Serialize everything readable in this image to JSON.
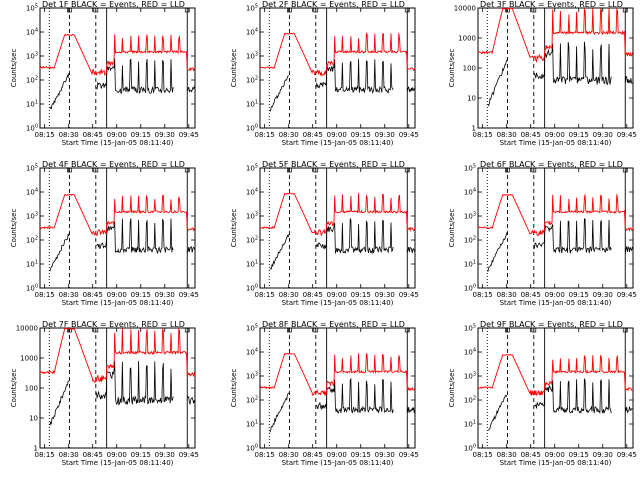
{
  "figure": {
    "xlabel": "Start Time (15-Jan-05 08:11:40)",
    "ylabel": "Counts/sec",
    "time_ticks": [
      "08:15",
      "08:30",
      "08:45",
      "09:00",
      "09:15",
      "09:30",
      "09:45"
    ],
    "colors": {
      "events": "#000000",
      "lld": "#ff0000",
      "frame": "#000000"
    }
  },
  "chart_data": [
    {
      "type": "line",
      "title": "Det 1F BLACK = Events, RED = LLD",
      "yscale": "log",
      "yticks": [
        "10^0",
        "10^1",
        "10^2",
        "10^3",
        "10^4",
        "10^5"
      ],
      "ylim": [
        1,
        100000
      ],
      "x_tick_labels": [
        "08:15",
        "08:30",
        "08:45",
        "09:00",
        "09:15",
        "09:30",
        "09:45"
      ],
      "series": [
        {
          "name": "Events",
          "color": "#000000"
        },
        {
          "name": "LLD",
          "color": "#ff0000"
        }
      ],
      "peak_lld": 8000
    },
    {
      "type": "line",
      "title": "Det 2F BLACK = Events, RED = LLD",
      "yscale": "log",
      "yticks": [
        "10^0",
        "10^1",
        "10^2",
        "10^3",
        "10^4",
        "10^5"
      ],
      "ylim": [
        1,
        100000
      ],
      "x_tick_labels": [
        "08:15",
        "08:30",
        "08:45",
        "09:00",
        "09:15",
        "09:30",
        "09:45"
      ],
      "series": [
        {
          "name": "Events",
          "color": "#000000"
        },
        {
          "name": "LLD",
          "color": "#ff0000"
        }
      ],
      "peak_lld": 9000
    },
    {
      "type": "line",
      "title": "Det 3F BLACK = Events, RED = LLD",
      "yscale": "log",
      "yticks": [
        "1",
        "10",
        "100",
        "1000",
        "10000"
      ],
      "ylim": [
        1,
        10000
      ],
      "x_tick_labels": [
        "08:15",
        "08:30",
        "08:45",
        "09:00",
        "09:15",
        "09:30",
        "09:45"
      ],
      "series": [
        {
          "name": "Events",
          "color": "#000000"
        },
        {
          "name": "LLD",
          "color": "#ff0000"
        }
      ],
      "peak_lld": 10000
    },
    {
      "type": "line",
      "title": "Det 4F BLACK = Events, RED = LLD",
      "yscale": "log",
      "yticks": [
        "10^0",
        "10^1",
        "10^2",
        "10^3",
        "10^4",
        "10^5"
      ],
      "ylim": [
        1,
        100000
      ],
      "x_tick_labels": [
        "08:15",
        "08:30",
        "08:45",
        "09:00",
        "09:15",
        "09:30",
        "09:45"
      ],
      "series": [
        {
          "name": "Events",
          "color": "#000000"
        },
        {
          "name": "LLD",
          "color": "#ff0000"
        }
      ],
      "peak_lld": 8000
    },
    {
      "type": "line",
      "title": "Det 5F BLACK = Events, RED = LLD",
      "yscale": "log",
      "yticks": [
        "10^0",
        "10^1",
        "10^2",
        "10^3",
        "10^4",
        "10^5"
      ],
      "ylim": [
        1,
        100000
      ],
      "x_tick_labels": [
        "08:15",
        "08:30",
        "08:45",
        "09:00",
        "09:15",
        "09:30",
        "09:45"
      ],
      "series": [
        {
          "name": "Events",
          "color": "#000000"
        },
        {
          "name": "LLD",
          "color": "#ff0000"
        }
      ],
      "peak_lld": 9000
    },
    {
      "type": "line",
      "title": "Det 6F BLACK = Events, RED = LLD",
      "yscale": "log",
      "yticks": [
        "10^0",
        "10^1",
        "10^2",
        "10^3",
        "10^4",
        "10^5"
      ],
      "ylim": [
        1,
        100000
      ],
      "x_tick_labels": [
        "08:15",
        "08:30",
        "08:45",
        "09:00",
        "09:15",
        "09:30",
        "09:45"
      ],
      "series": [
        {
          "name": "Events",
          "color": "#000000"
        },
        {
          "name": "LLD",
          "color": "#ff0000"
        }
      ],
      "peak_lld": 8000
    },
    {
      "type": "line",
      "title": "Det 7F BLACK = Events, RED = LLD",
      "yscale": "log",
      "yticks": [
        "1",
        "10",
        "100",
        "1000",
        "10000"
      ],
      "ylim": [
        1,
        10000
      ],
      "x_tick_labels": [
        "08:15",
        "08:30",
        "08:45",
        "09:00",
        "09:15",
        "09:30",
        "09:45"
      ],
      "series": [
        {
          "name": "Events",
          "color": "#000000"
        },
        {
          "name": "LLD",
          "color": "#ff0000"
        }
      ],
      "peak_lld": 10000
    },
    {
      "type": "line",
      "title": "Det 8F BLACK = Events, RED = LLD",
      "yscale": "log",
      "yticks": [
        "10^0",
        "10^1",
        "10^2",
        "10^3",
        "10^4",
        "10^5"
      ],
      "ylim": [
        1,
        100000
      ],
      "x_tick_labels": [
        "08:15",
        "08:30",
        "08:45",
        "09:00",
        "09:15",
        "09:30",
        "09:45"
      ],
      "series": [
        {
          "name": "Events",
          "color": "#000000"
        },
        {
          "name": "LLD",
          "color": "#ff0000"
        }
      ],
      "peak_lld": 9000
    },
    {
      "type": "line",
      "title": "Det 9F BLACK = Events, RED = LLD",
      "yscale": "log",
      "yticks": [
        "10^0",
        "10^1",
        "10^2",
        "10^3",
        "10^4",
        "10^5"
      ],
      "ylim": [
        1,
        100000
      ],
      "x_tick_labels": [
        "08:15",
        "08:30",
        "08:45",
        "09:00",
        "09:15",
        "09:30",
        "09:45"
      ],
      "series": [
        {
          "name": "Events",
          "color": "#000000"
        },
        {
          "name": "LLD",
          "color": "#ff0000"
        }
      ],
      "peak_lld": 8000
    }
  ]
}
